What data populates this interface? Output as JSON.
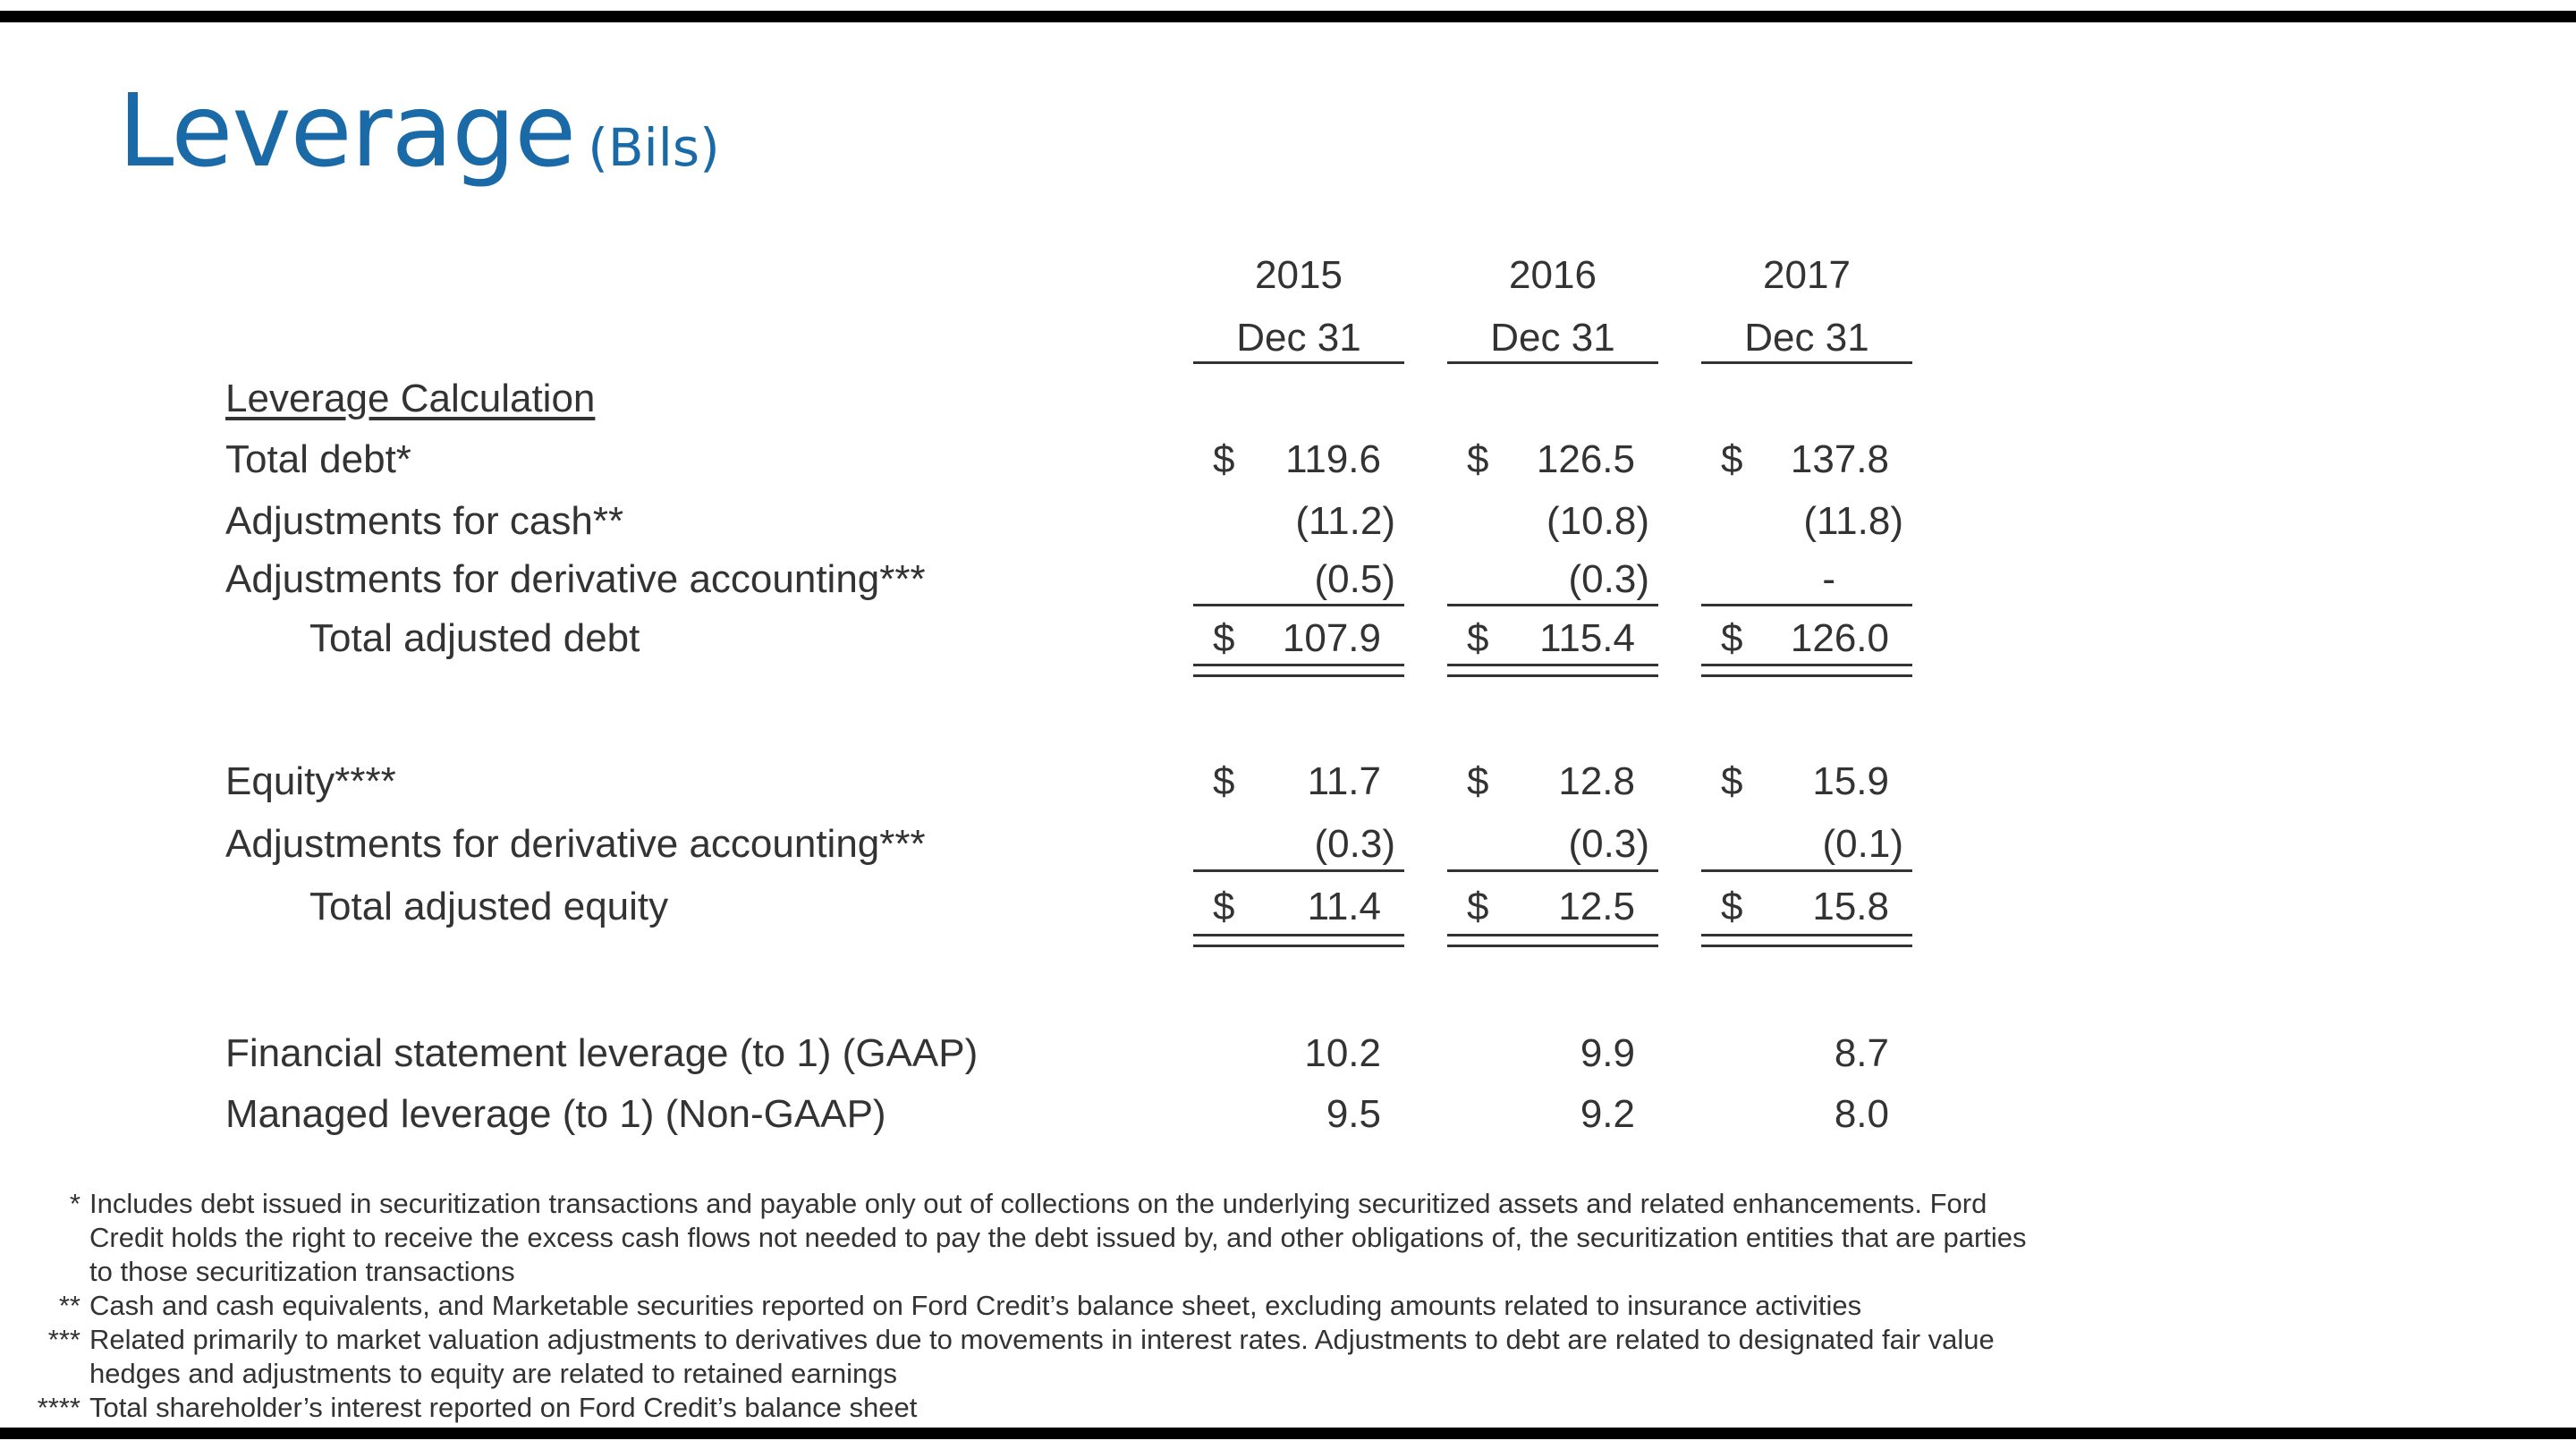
{
  "title": {
    "main": "Leverage",
    "sub": "(Bils)"
  },
  "columns": [
    {
      "year": "2015",
      "date": "Dec 31"
    },
    {
      "year": "2016",
      "date": "Dec 31"
    },
    {
      "year": "2017",
      "date": "Dec 31"
    }
  ],
  "section_heading": "Leverage Calculation",
  "rows": {
    "total_debt": {
      "label": "Total debt*",
      "cur": "$",
      "v": [
        "119.6",
        "126.5",
        "137.8"
      ]
    },
    "adj_cash": {
      "label": "Adjustments for cash**",
      "v": [
        "(11.2)",
        "(10.8)",
        "(11.8)"
      ]
    },
    "adj_deriv_debt": {
      "label": "Adjustments for derivative accounting***",
      "v": [
        "(0.5)",
        "(0.3)",
        "-"
      ]
    },
    "total_adj_debt": {
      "label": "Total adjusted debt",
      "cur": "$",
      "v": [
        "107.9",
        "115.4",
        "126.0"
      ]
    },
    "equity": {
      "label": "Equity****",
      "cur": "$",
      "v": [
        "11.7",
        "12.8",
        "15.9"
      ]
    },
    "adj_deriv_equity": {
      "label": "Adjustments for derivative accounting***",
      "v": [
        "(0.3)",
        "(0.3)",
        "(0.1)"
      ]
    },
    "total_adj_equity": {
      "label": "Total adjusted equity",
      "cur": "$",
      "v": [
        "11.4",
        "12.5",
        "15.8"
      ]
    },
    "fs_leverage": {
      "label": "Financial statement leverage (to 1) (GAAP)",
      "v": [
        "10.2",
        "9.9",
        "8.7"
      ]
    },
    "managed_leverage": {
      "label": "Managed leverage (to 1) (Non-GAAP)",
      "v": [
        "9.5",
        "9.2",
        "8.0"
      ]
    }
  },
  "footnotes": [
    {
      "mark": "*",
      "lines": [
        "Includes debt issued in securitization transactions and payable only out of collections on the underlying securitized assets and related enhancements.  Ford",
        "Credit holds the right to receive the excess cash flows not needed  to pay the debt issued by, and other obligations of, the securitization entities that are parties",
        "to those securitization transactions"
      ]
    },
    {
      "mark": "**",
      "lines": [
        "Cash and cash equivalents, and Marketable securities reported on Ford Credit’s balance sheet, excluding amounts related to insurance activities"
      ]
    },
    {
      "mark": "***",
      "lines": [
        "Related primarily to market valuation adjustments to derivatives due to movements in interest rates.  Adjustments to debt are related to designated fair value",
        "hedges and adjustments to equity are related to retained earnings"
      ]
    },
    {
      "mark": "****",
      "lines": [
        "Total shareholder’s interest reported on Ford Credit’s balance sheet"
      ]
    }
  ],
  "colors": {
    "title": "#1a6aa8",
    "text": "#333333",
    "bars": "#000000"
  }
}
